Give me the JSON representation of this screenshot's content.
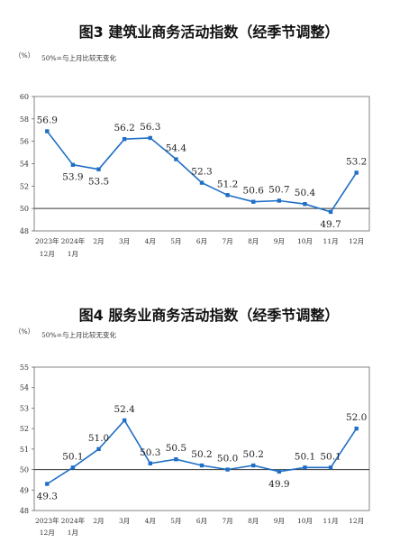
{
  "chart_data": [
    {
      "type": "line",
      "title": "图3  建筑业商务活动指数（经季节调整）",
      "unit": "（%）",
      "note": "50%=与上月比较无变化",
      "categories": [
        [
          "2023年",
          "12月"
        ],
        [
          "2024年",
          "1月"
        ],
        [
          "2月"
        ],
        [
          "3月"
        ],
        [
          "4月"
        ],
        [
          "5月"
        ],
        [
          "6月"
        ],
        [
          "7月"
        ],
        [
          "8月"
        ],
        [
          "9月"
        ],
        [
          "10月"
        ],
        [
          "11月"
        ],
        [
          "12月"
        ]
      ],
      "values": [
        56.9,
        53.9,
        53.5,
        56.2,
        56.3,
        54.4,
        52.3,
        51.2,
        50.6,
        50.7,
        50.4,
        49.7,
        53.2
      ],
      "value_labels": [
        "56.9",
        "53.9",
        "53.5",
        "56.2",
        "56.3",
        "54.4",
        "52.3",
        "51.2",
        "50.6",
        "50.7",
        "50.4",
        "49.7",
        "53.2"
      ],
      "yticks": [
        48,
        50,
        52,
        54,
        56,
        58,
        60
      ],
      "ylim": [
        48,
        60
      ],
      "reference_line": 50,
      "grid": false,
      "line_color": "#1f6fc5"
    },
    {
      "type": "line",
      "title": "图4  服务业商务活动指数（经季节调整）",
      "unit": "（%）",
      "note": "50%=与上月比较无变化",
      "categories": [
        [
          "2023年",
          "12月"
        ],
        [
          "2024年",
          "1月"
        ],
        [
          "2月"
        ],
        [
          "3月"
        ],
        [
          "4月"
        ],
        [
          "5月"
        ],
        [
          "6月"
        ],
        [
          "7月"
        ],
        [
          "8月"
        ],
        [
          "9月"
        ],
        [
          "10月"
        ],
        [
          "11月"
        ],
        [
          "12月"
        ]
      ],
      "values": [
        49.3,
        50.1,
        51.0,
        52.4,
        50.3,
        50.5,
        50.2,
        50.0,
        50.2,
        49.9,
        50.1,
        50.1,
        52.0
      ],
      "value_labels": [
        "49.3",
        "50.1",
        "51.0",
        "52.4",
        "50.3",
        "50.5",
        "50.2",
        "50.0",
        "50.2",
        "49.9",
        "50.1",
        "50.1",
        "52.0"
      ],
      "yticks": [
        48,
        49,
        50,
        51,
        52,
        53,
        54,
        55
      ],
      "ylim": [
        48,
        55
      ],
      "reference_line": 50,
      "grid": false,
      "line_color": "#1f6fc5"
    }
  ]
}
